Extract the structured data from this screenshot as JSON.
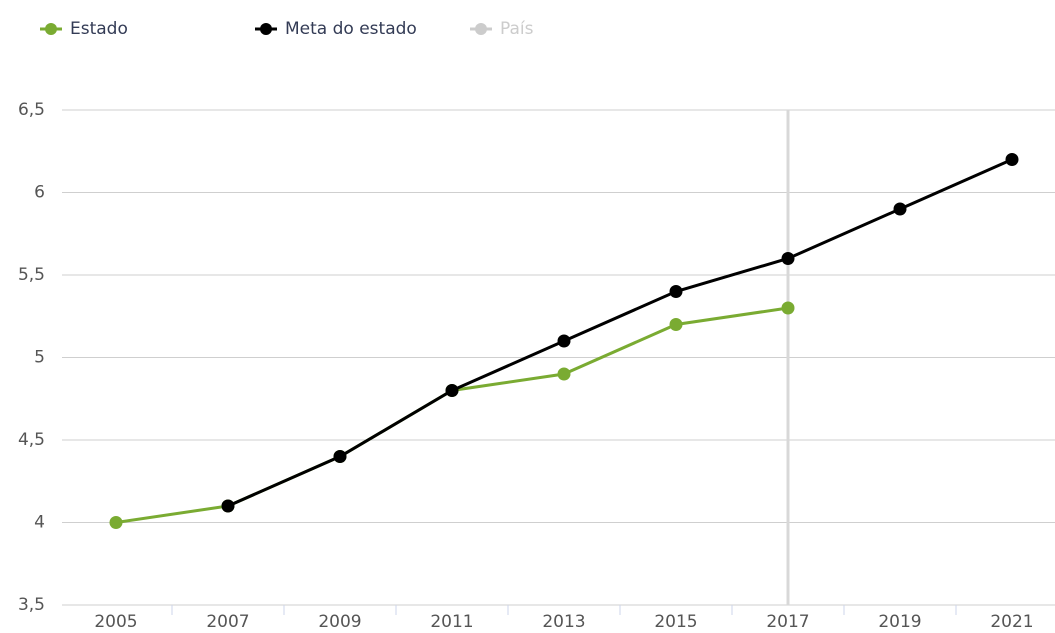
{
  "chart_data": {
    "type": "line",
    "categories": [
      "2005",
      "2007",
      "2009",
      "2011",
      "2013",
      "2015",
      "2017",
      "2019",
      "2021"
    ],
    "series": [
      {
        "name": "Estado",
        "color": "#7aab32",
        "values": [
          4.0,
          4.1,
          4.4,
          4.8,
          4.9,
          5.2,
          5.3,
          null,
          null
        ]
      },
      {
        "name": "Meta do estado",
        "color": "#000000",
        "values": [
          null,
          4.1,
          4.4,
          4.8,
          5.1,
          5.4,
          5.6,
          5.9,
          6.2
        ]
      },
      {
        "name": "País",
        "color": "#cccccc",
        "hidden": true,
        "values": [
          null,
          null,
          null,
          null,
          null,
          null,
          null,
          null,
          null
        ]
      }
    ],
    "ylim": [
      3.5,
      6.5
    ],
    "yticks": [
      {
        "value": 3.5,
        "label": "3,5"
      },
      4,
      {
        "value": 4.5,
        "label": "4,5"
      },
      5,
      {
        "value": 5.5,
        "label": "5,5"
      },
      6,
      {
        "value": 6.5,
        "label": "6,5"
      }
    ],
    "grid": true,
    "crosshair": "2017",
    "legend": "top-left"
  }
}
